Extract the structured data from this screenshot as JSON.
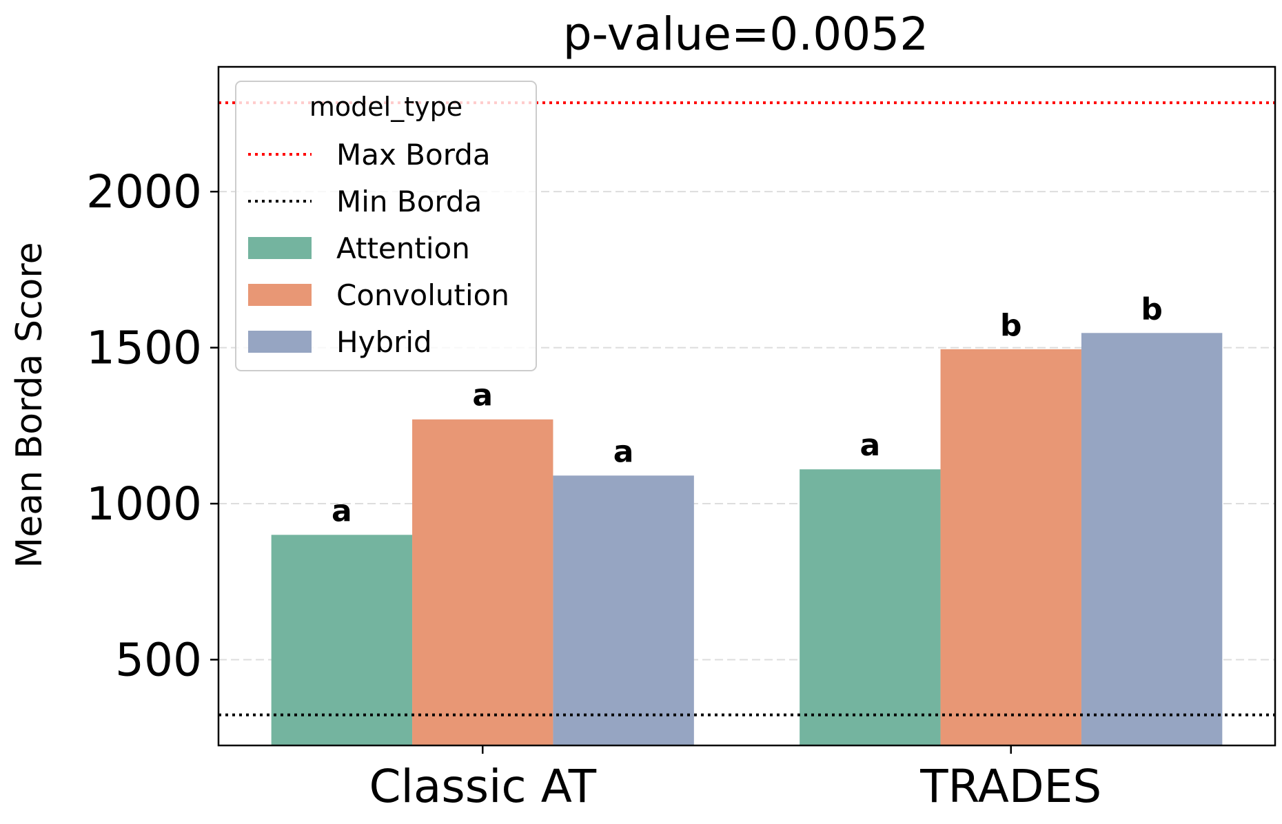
{
  "chart_data": {
    "type": "bar",
    "title": "p-value=0.0052",
    "xlabel": "",
    "ylabel": "Mean Borda Score",
    "categories": [
      "Classic AT",
      "TRADES"
    ],
    "ylim": [
      225,
      2400
    ],
    "yticks": [
      500,
      1000,
      1500,
      2000
    ],
    "grid": {
      "y": true,
      "style": "dashed"
    },
    "series": [
      {
        "name": "Attention",
        "color": "#74b49f",
        "values": [
          900,
          1110
        ],
        "labels": [
          "a",
          "a"
        ]
      },
      {
        "name": "Convolution",
        "color": "#e89775",
        "values": [
          1270,
          1495
        ],
        "labels": [
          "a",
          "b"
        ]
      },
      {
        "name": "Hybrid",
        "color": "#96a5c2",
        "values": [
          1090,
          1547
        ],
        "labels": [
          "a",
          "b"
        ]
      }
    ],
    "reference_lines": [
      {
        "name": "Max Borda",
        "value": 2285,
        "color": "#ff0000",
        "style": "dotted"
      },
      {
        "name": "Min Borda",
        "value": 323,
        "color": "#000000",
        "style": "dotted"
      }
    ],
    "legend": {
      "title": "model_type",
      "placement": "upper-left",
      "entries": [
        {
          "label": "Max Borda",
          "kind": "line",
          "color": "#ff0000"
        },
        {
          "label": "Min Borda",
          "kind": "line",
          "color": "#000000"
        },
        {
          "label": "Attention",
          "kind": "patch",
          "color": "#74b49f"
        },
        {
          "label": "Convolution",
          "kind": "patch",
          "color": "#e89775"
        },
        {
          "label": "Hybrid",
          "kind": "patch",
          "color": "#96a5c2"
        }
      ]
    }
  }
}
